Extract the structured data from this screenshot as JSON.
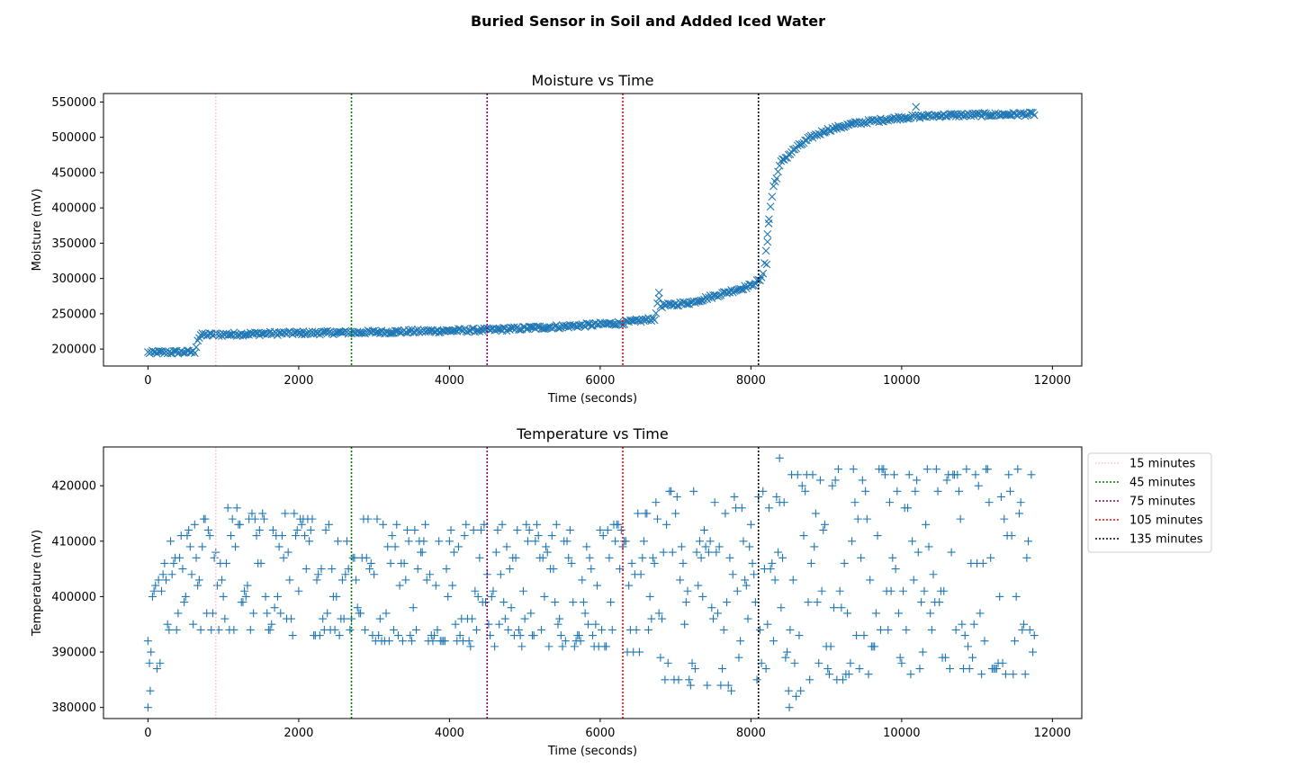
{
  "figure": {
    "suptitle": "Buried Sensor in Soil and Added Iced Water"
  },
  "colors": {
    "data": "#1f77b4",
    "line_15": "#ffc0cb",
    "line_45": "#008000",
    "line_75": "#800080",
    "line_105": "#ff0000",
    "line_135": "#000000"
  },
  "chart_data": [
    {
      "type": "scatter",
      "title": "Moisture vs Time",
      "xlabel": "Time (seconds)",
      "ylabel": "Moisture (mV)",
      "marker": "x",
      "xlim": [
        -590,
        12390
      ],
      "ylim": [
        176000,
        562000
      ],
      "xticks": [
        0,
        2000,
        4000,
        6000,
        8000,
        10000,
        12000
      ],
      "yticks": [
        200000,
        250000,
        300000,
        350000,
        400000,
        450000,
        500000,
        550000
      ],
      "xticklabels": [
        "0",
        "2000",
        "4000",
        "6000",
        "8000",
        "10000",
        "12000"
      ],
      "yticklabels": [
        "200000",
        "250000",
        "300000",
        "350000",
        "400000",
        "450000",
        "500000",
        "550000"
      ],
      "series": [
        {
          "sample_interval_s": 20,
          "x_range": [
            0,
            11760
          ],
          "trend_points": [
            [
              0,
              195000
            ],
            [
              620,
              196000
            ],
            [
              660,
              213000
            ],
            [
              700,
              220000
            ],
            [
              1500,
              222000
            ],
            [
              3000,
              224000
            ],
            [
              4500,
              227000
            ],
            [
              5500,
              232000
            ],
            [
              6300,
              237000
            ],
            [
              6720,
              243000
            ],
            [
              6780,
              272000
            ],
            [
              6800,
              261000
            ],
            [
              7200,
              266000
            ],
            [
              7600,
              278000
            ],
            [
              8000,
              290000
            ],
            [
              8150,
              300000
            ],
            [
              8200,
              340000
            ],
            [
              8250,
              395000
            ],
            [
              8300,
              430000
            ],
            [
              8400,
              465000
            ],
            [
              8600,
              485000
            ],
            [
              8800,
              500000
            ],
            [
              9000,
              510000
            ],
            [
              9400,
              520000
            ],
            [
              10000,
              528000
            ],
            [
              10500,
              531000
            ],
            [
              11760,
              533000
            ]
          ],
          "outliers": [
            [
              6780,
              280000
            ],
            [
              8210,
              320000
            ],
            [
              8220,
              352000
            ],
            [
              8235,
              378000
            ],
            [
              10190,
              543000
            ]
          ]
        }
      ],
      "vlines": [
        {
          "x": 900,
          "label": "15 minutes"
        },
        {
          "x": 2700,
          "label": "45 minutes"
        },
        {
          "x": 4500,
          "label": "75 minutes"
        },
        {
          "x": 6300,
          "label": "105 minutes"
        },
        {
          "x": 8100,
          "label": "135 minutes"
        }
      ]
    },
    {
      "type": "scatter",
      "title": "Temperature vs Time",
      "xlabel": "Time (seconds)",
      "ylabel": "Temperature (mV)",
      "marker": "+",
      "xlim": [
        -590,
        12390
      ],
      "ylim": [
        378000,
        427000
      ],
      "xticks": [
        0,
        2000,
        4000,
        6000,
        8000,
        10000,
        12000
      ],
      "yticks": [
        380000,
        390000,
        400000,
        410000,
        420000
      ],
      "xticklabels": [
        "0",
        "2000",
        "4000",
        "6000",
        "8000",
        "10000",
        "12000"
      ],
      "yticklabels": [
        "380000",
        "390000",
        "400000",
        "410000",
        "420000"
      ],
      "series": [
        {
          "sample_interval_s": 20,
          "x_range": [
            0,
            11760
          ],
          "band_low": [
            [
              0,
              380000
            ],
            [
              100,
              386000
            ],
            [
              300,
              391000
            ],
            [
              600,
              393000
            ],
            [
              1500,
              393500
            ],
            [
              3000,
              392000
            ],
            [
              5000,
              391000
            ],
            [
              6300,
              390500
            ],
            [
              6900,
              384000
            ],
            [
              7500,
              383000
            ],
            [
              8100,
              384000
            ],
            [
              8400,
              381000
            ],
            [
              9000,
              385000
            ],
            [
              10000,
              386000
            ],
            [
              11760,
              386000
            ]
          ],
          "band_high": [
            [
              0,
              396000
            ],
            [
              100,
              402000
            ],
            [
              300,
              410000
            ],
            [
              600,
              413000
            ],
            [
              1000,
              416500
            ],
            [
              1500,
              415000
            ],
            [
              2700,
              415000
            ],
            [
              4000,
              413500
            ],
            [
              5000,
              413000
            ],
            [
              6300,
              413000
            ],
            [
              6900,
              419000
            ],
            [
              7500,
              418500
            ],
            [
              8100,
              419000
            ],
            [
              8500,
              423000
            ],
            [
              9000,
              423500
            ],
            [
              10000,
              423500
            ],
            [
              11760,
              423000
            ]
          ],
          "outliers": [
            [
              0,
              380000
            ],
            [
              30,
              383000
            ],
            [
              8380,
              425000
            ],
            [
              8510,
              380000
            ]
          ]
        }
      ],
      "vlines": [
        {
          "x": 900,
          "label": "15 minutes"
        },
        {
          "x": 2700,
          "label": "45 minutes"
        },
        {
          "x": 4500,
          "label": "75 minutes"
        },
        {
          "x": 6300,
          "label": "105 minutes"
        },
        {
          "x": 8100,
          "label": "135 minutes"
        }
      ],
      "legend": {
        "placement": "outside-upper-right",
        "entries": [
          "15 minutes",
          "45 minutes",
          "75 minutes",
          "105 minutes",
          "135 minutes"
        ]
      }
    }
  ]
}
